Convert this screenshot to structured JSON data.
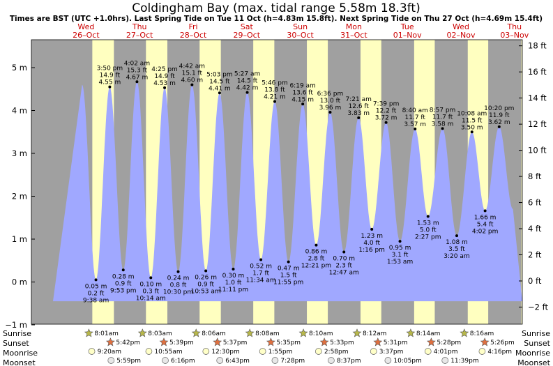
{
  "chart_data": {
    "type": "area",
    "title": "Coldingham Bay (max. tidal range 5.58m 18.3ft)",
    "subtitle": "Times are BST (UTC +1.0hrs). Last Spring Tide on Tue 11 Oct (h=4.83m 15.8ft). Next Spring Tide on Thu 27 Oct (h=4.69m 15.4ft)",
    "ylabel_left": "m",
    "ylabel_right": "ft",
    "ylim_m": [
      -1,
      5.7
    ],
    "yticks_m": [
      "−1 m",
      "0 m",
      "1 m",
      "2 m",
      "3 m",
      "4 m",
      "5 m"
    ],
    "yticks_ft": [
      "−2 ft",
      "0 ft",
      "2 ft",
      "4 ft",
      "6 ft",
      "8 ft",
      "10 ft",
      "12 ft",
      "14 ft",
      "16 ft",
      "18 ft"
    ],
    "colors": {
      "night": "#a0a0a0",
      "day": "#ffffc0",
      "tide": "#a0a8ff",
      "day_label": "#cc0000"
    },
    "days": [
      {
        "dow": "Wed",
        "date": "26–Oct"
      },
      {
        "dow": "Thu",
        "date": "27–Oct"
      },
      {
        "dow": "Fri",
        "date": "28–Oct"
      },
      {
        "dow": "Sat",
        "date": "29–Oct"
      },
      {
        "dow": "Sun",
        "date": "30–Oct"
      },
      {
        "dow": "Mon",
        "date": "31–Oct"
      },
      {
        "dow": "Tue",
        "date": "01–Nov"
      },
      {
        "dow": "Wed",
        "date": "02–Nov"
      },
      {
        "dow": "Thu",
        "date": "03–Nov"
      }
    ],
    "tides": [
      {
        "type": "low",
        "time": "9:38 am",
        "m": 0.05,
        "m_label": "0.05 m",
        "ft_label": "0.2 ft"
      },
      {
        "type": "high",
        "time": "3:50 pm",
        "m": 4.55,
        "m_label": "4.55 m",
        "ft_label": "14.9 ft"
      },
      {
        "type": "low",
        "time": "9:53 pm",
        "m": 0.28,
        "m_label": "0.28 m",
        "ft_label": "0.9 ft"
      },
      {
        "type": "high",
        "time": "4:02 am",
        "m": 4.67,
        "m_label": "4.67 m",
        "ft_label": "15.3 ft"
      },
      {
        "type": "low",
        "time": "10:14 am",
        "m": 0.1,
        "m_label": "0.10 m",
        "ft_label": "0.3 ft"
      },
      {
        "type": "high",
        "time": "4:25 pm",
        "m": 4.53,
        "m_label": "4.53 m",
        "ft_label": "14.9 ft"
      },
      {
        "type": "low",
        "time": "10:30 pm",
        "m": 0.24,
        "m_label": "0.24 m",
        "ft_label": "0.8 ft"
      },
      {
        "type": "high",
        "time": "4:42 am",
        "m": 4.6,
        "m_label": "4.60 m",
        "ft_label": "15.1 ft"
      },
      {
        "type": "low",
        "time": "10:53 am",
        "m": 0.26,
        "m_label": "0.26 m",
        "ft_label": "0.9 ft"
      },
      {
        "type": "high",
        "time": "5:03 pm",
        "m": 4.41,
        "m_label": "4.41 m",
        "ft_label": "14.5 ft"
      },
      {
        "type": "low",
        "time": "11:11 pm",
        "m": 0.3,
        "m_label": "0.30 m",
        "ft_label": "1.0 ft"
      },
      {
        "type": "high",
        "time": "5:27 am",
        "m": 4.42,
        "m_label": "4.42 m",
        "ft_label": "14.5 ft"
      },
      {
        "type": "low",
        "time": "11:34 am",
        "m": 0.52,
        "m_label": "0.52 m",
        "ft_label": "1.7 ft"
      },
      {
        "type": "high",
        "time": "5:46 pm",
        "m": 4.21,
        "m_label": "4.21 m",
        "ft_label": "13.8 ft"
      },
      {
        "type": "low",
        "time": "11:55 pm",
        "m": 0.47,
        "m_label": "0.47 m",
        "ft_label": "1.5 ft"
      },
      {
        "type": "high",
        "time": "6:19 am",
        "m": 4.15,
        "m_label": "4.15 m",
        "ft_label": "13.6 ft"
      },
      {
        "type": "low",
        "time": "12:21 pm",
        "m": 0.86,
        "m_label": "0.86 m",
        "ft_label": "2.8 ft"
      },
      {
        "type": "high",
        "time": "6:36 pm",
        "m": 3.96,
        "m_label": "3.96 m",
        "ft_label": "13.0 ft"
      },
      {
        "type": "low",
        "time": "12:47 am",
        "m": 0.7,
        "m_label": "0.70 m",
        "ft_label": "2.3 ft"
      },
      {
        "type": "high",
        "time": "7:21 am",
        "m": 3.83,
        "m_label": "3.83 m",
        "ft_label": "12.6 ft"
      },
      {
        "type": "low",
        "time": "1:16 pm",
        "m": 1.23,
        "m_label": "1.23 m",
        "ft_label": "4.0 ft"
      },
      {
        "type": "high",
        "time": "7:39 pm",
        "m": 3.72,
        "m_label": "3.72 m",
        "ft_label": "12.2 ft"
      },
      {
        "type": "low",
        "time": "1:53 am",
        "m": 0.95,
        "m_label": "0.95 m",
        "ft_label": "3.1 ft"
      },
      {
        "type": "high",
        "time": "8:40 am",
        "m": 3.57,
        "m_label": "3.57 m",
        "ft_label": "11.7 ft"
      },
      {
        "type": "low",
        "time": "2:27 pm",
        "m": 1.53,
        "m_label": "1.53 m",
        "ft_label": "5.0 ft"
      },
      {
        "type": "high",
        "time": "8:57 pm",
        "m": 3.58,
        "m_label": "3.58 m",
        "ft_label": "11.7 ft"
      },
      {
        "type": "low",
        "time": "3:20 am",
        "m": 1.08,
        "m_label": "1.08 m",
        "ft_label": "3.5 ft"
      },
      {
        "type": "high",
        "time": "10:08 am",
        "m": 3.5,
        "m_label": "3.50 m",
        "ft_label": "11.5 ft"
      },
      {
        "type": "low",
        "time": "4:02 pm",
        "m": 1.66,
        "m_label": "1.66 m",
        "ft_label": "5.4 ft"
      },
      {
        "type": "high",
        "time": "10:20 pm",
        "m": 3.62,
        "m_label": "3.62 m",
        "ft_label": "11.9 ft"
      }
    ],
    "sun_moon": {
      "labels": {
        "sunrise": "Sunrise",
        "sunset": "Sunset",
        "moonrise": "Moonrise",
        "moonset": "Moonset"
      },
      "sunrise": [
        "8:01am",
        "8:03am",
        "8:06am",
        "8:08am",
        "8:10am",
        "8:12am",
        "8:14am",
        "8:16am"
      ],
      "sunset": [
        "5:42pm",
        "5:39pm",
        "5:37pm",
        "5:35pm",
        "5:33pm",
        "5:31pm",
        "5:28pm",
        "5:26pm"
      ],
      "moonrise": [
        "9:20am",
        "10:55am",
        "12:30pm",
        "1:55pm",
        "2:58pm",
        "3:37pm",
        "4:01pm",
        "4:16pm"
      ],
      "moonset": [
        "5:59pm",
        "6:16pm",
        "6:43pm",
        "7:28pm",
        "8:37pm",
        "10:05pm",
        "11:39pm"
      ]
    }
  }
}
